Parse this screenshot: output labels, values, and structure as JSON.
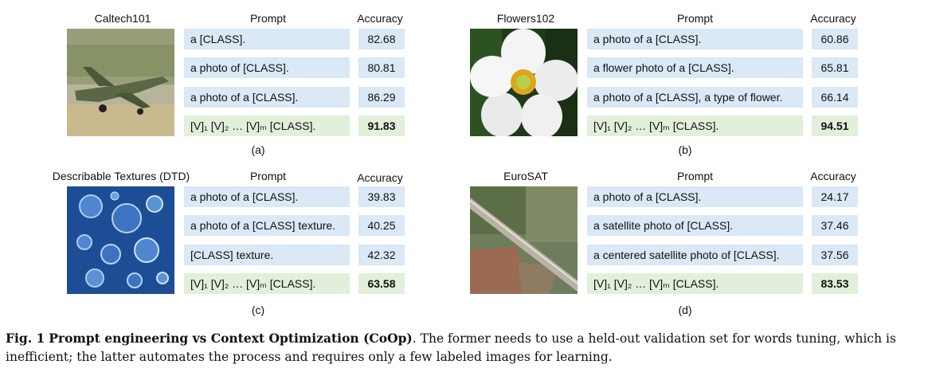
{
  "headers": {
    "prompt": "Prompt",
    "accuracy": "Accuracy"
  },
  "panels": [
    {
      "dataset": "Caltech101",
      "sublabel": "(a)",
      "image_icon": "fighter-jet-photo",
      "rows": [
        {
          "prompt": "a [CLASS].",
          "accuracy": "82.68"
        },
        {
          "prompt": "a photo of [CLASS].",
          "accuracy": "80.81"
        },
        {
          "prompt": "a photo of a [CLASS].",
          "accuracy": "86.29"
        },
        {
          "prompt": "[V]₁ [V]₂ … [V]ₘ [CLASS].",
          "accuracy": "91.83"
        }
      ]
    },
    {
      "dataset": "Flowers102",
      "sublabel": "(b)",
      "image_icon": "white-flower-photo",
      "rows": [
        {
          "prompt": "a photo of a [CLASS].",
          "accuracy": "60.86"
        },
        {
          "prompt": "a flower photo of a [CLASS].",
          "accuracy": "65.81"
        },
        {
          "prompt": "a photo of a [CLASS], a type of flower.",
          "accuracy": "66.14"
        },
        {
          "prompt": "[V]₁ [V]₂ … [V]ₘ [CLASS].",
          "accuracy": "94.51"
        }
      ]
    },
    {
      "dataset": "Describable Textures (DTD)",
      "sublabel": "(c)",
      "image_icon": "water-bubbles-texture-photo",
      "rows": [
        {
          "prompt": "a photo of a [CLASS].",
          "accuracy": "39.83"
        },
        {
          "prompt": "a photo of a [CLASS] texture.",
          "accuracy": "40.25"
        },
        {
          "prompt": "[CLASS] texture.",
          "accuracy": "42.32"
        },
        {
          "prompt": "[V]₁ [V]₂ … [V]ₘ [CLASS].",
          "accuracy": "63.58"
        }
      ]
    },
    {
      "dataset": "EuroSAT",
      "sublabel": "(d)",
      "image_icon": "satellite-image-photo",
      "rows": [
        {
          "prompt": "a photo of a [CLASS].",
          "accuracy": "24.17"
        },
        {
          "prompt": "a satellite photo of [CLASS].",
          "accuracy": "37.46"
        },
        {
          "prompt": "a centered satellite photo of [CLASS].",
          "accuracy": "37.56"
        },
        {
          "prompt": "[V]₁ [V]₂ … [V]ₘ [CLASS].",
          "accuracy": "83.53"
        }
      ]
    }
  ],
  "colors": {
    "prompt_cell": "#dbe8f5",
    "learned_cell": "#e2efda"
  },
  "caption": {
    "label": "Fig. 1",
    "title": "Prompt engineering vs Context Optimization (CoOp)",
    "text": ". The former needs to use a held-out validation set for words tuning, which is inefficient; the latter automates the process and requires only a few labeled images for learning."
  }
}
